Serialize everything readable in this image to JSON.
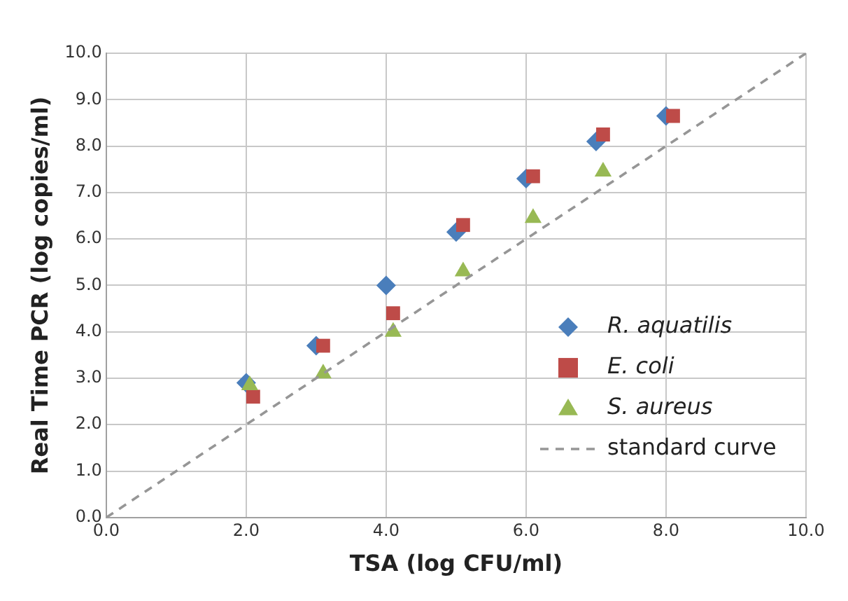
{
  "chart_data": {
    "type": "scatter",
    "xlabel": "TSA (log CFU/ml)",
    "ylabel": "Real Time PCR (log copies/ml)",
    "series": [
      {
        "name": "R. aquatilis",
        "color": "#4a7ebb",
        "marker": "diamond",
        "x": [
          2,
          3,
          4,
          5,
          6,
          7,
          8
        ],
        "values": [
          2.9,
          3.7,
          5.0,
          6.15,
          7.3,
          8.1,
          8.65
        ]
      },
      {
        "name": "E. coli",
        "color": "#be4b48",
        "marker": "square",
        "x": [
          2.1,
          3.1,
          4.1,
          5.1,
          6.1,
          7.1,
          8.1
        ],
        "values": [
          2.6,
          3.7,
          4.4,
          6.3,
          7.35,
          8.25,
          8.65
        ]
      },
      {
        "name": "S. aureus",
        "color": "#98b954",
        "marker": "triangle",
        "x": [
          2.05,
          3.1,
          4.1,
          5.1,
          6.1,
          7.1
        ],
        "values": [
          2.85,
          3.1,
          4.0,
          5.3,
          6.45,
          7.45
        ]
      },
      {
        "name": "standard curve",
        "type": "line",
        "color": "#969696",
        "line_style": "dashed",
        "marker": "none",
        "x": [
          0,
          10
        ],
        "values": [
          0,
          10
        ]
      }
    ],
    "xlim": [
      0,
      10
    ],
    "xticks": [
      {
        "value": 0,
        "label": "0.0"
      },
      {
        "value": 2,
        "label": "2.0"
      },
      {
        "value": 4,
        "label": "4.0"
      },
      {
        "value": 6,
        "label": "6.0"
      },
      {
        "value": 8,
        "label": "8.0"
      },
      {
        "value": 10,
        "label": "10.0"
      }
    ],
    "ylim": [
      0,
      10
    ],
    "yticks": [
      {
        "value": 0,
        "label": "0.0"
      },
      {
        "value": 1,
        "label": "1.0"
      },
      {
        "value": 2,
        "label": "2.0"
      },
      {
        "value": 3,
        "label": "3.0"
      },
      {
        "value": 4,
        "label": "4.0"
      },
      {
        "value": 5,
        "label": "5.0"
      },
      {
        "value": 6,
        "label": "6.0"
      },
      {
        "value": 7,
        "label": "7.0"
      },
      {
        "value": 8,
        "label": "8.0"
      },
      {
        "value": 9,
        "label": "9.0"
      },
      {
        "value": 10,
        "label": "10.0"
      }
    ],
    "grid": true,
    "legend": "right"
  }
}
